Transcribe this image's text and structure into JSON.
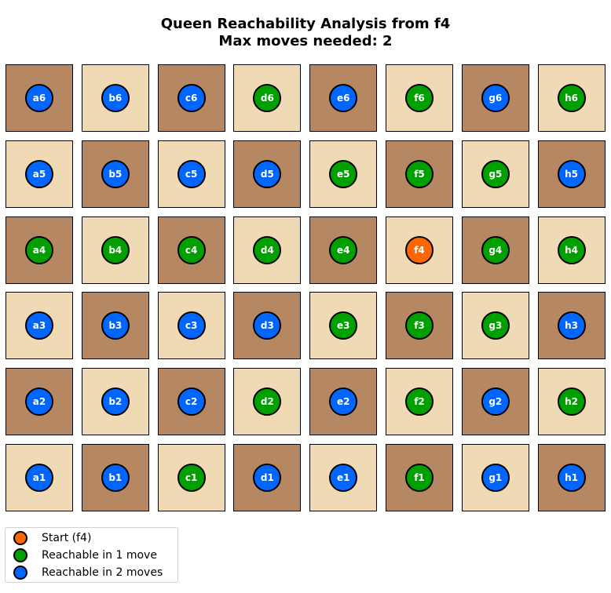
{
  "title_line1": "Queen Reachability Analysis from f4",
  "title_line2": "Max moves needed: 2",
  "colors": {
    "light_square": "#f0d9b5",
    "dark_square": "#b58863",
    "start": "#ff6600",
    "one_move": "#00a000",
    "two_moves": "#0066ff"
  },
  "files": [
    "a",
    "b",
    "c",
    "d",
    "e",
    "f",
    "g",
    "h"
  ],
  "ranks": [
    6,
    5,
    4,
    3,
    2,
    1
  ],
  "squares": [
    {
      "label": "a6",
      "moves": 2
    },
    {
      "label": "b6",
      "moves": 2
    },
    {
      "label": "c6",
      "moves": 2
    },
    {
      "label": "d6",
      "moves": 1
    },
    {
      "label": "e6",
      "moves": 2
    },
    {
      "label": "f6",
      "moves": 1
    },
    {
      "label": "g6",
      "moves": 2
    },
    {
      "label": "h6",
      "moves": 1
    },
    {
      "label": "a5",
      "moves": 2
    },
    {
      "label": "b5",
      "moves": 2
    },
    {
      "label": "c5",
      "moves": 2
    },
    {
      "label": "d5",
      "moves": 2
    },
    {
      "label": "e5",
      "moves": 1
    },
    {
      "label": "f5",
      "moves": 1
    },
    {
      "label": "g5",
      "moves": 1
    },
    {
      "label": "h5",
      "moves": 2
    },
    {
      "label": "a4",
      "moves": 1
    },
    {
      "label": "b4",
      "moves": 1
    },
    {
      "label": "c4",
      "moves": 1
    },
    {
      "label": "d4",
      "moves": 1
    },
    {
      "label": "e4",
      "moves": 1
    },
    {
      "label": "f4",
      "moves": 0
    },
    {
      "label": "g4",
      "moves": 1
    },
    {
      "label": "h4",
      "moves": 1
    },
    {
      "label": "a3",
      "moves": 2
    },
    {
      "label": "b3",
      "moves": 2
    },
    {
      "label": "c3",
      "moves": 2
    },
    {
      "label": "d3",
      "moves": 2
    },
    {
      "label": "e3",
      "moves": 1
    },
    {
      "label": "f3",
      "moves": 1
    },
    {
      "label": "g3",
      "moves": 1
    },
    {
      "label": "h3",
      "moves": 2
    },
    {
      "label": "a2",
      "moves": 2
    },
    {
      "label": "b2",
      "moves": 2
    },
    {
      "label": "c2",
      "moves": 2
    },
    {
      "label": "d2",
      "moves": 1
    },
    {
      "label": "e2",
      "moves": 2
    },
    {
      "label": "f2",
      "moves": 1
    },
    {
      "label": "g2",
      "moves": 2
    },
    {
      "label": "h2",
      "moves": 1
    },
    {
      "label": "a1",
      "moves": 2
    },
    {
      "label": "b1",
      "moves": 2
    },
    {
      "label": "c1",
      "moves": 1
    },
    {
      "label": "d1",
      "moves": 2
    },
    {
      "label": "e1",
      "moves": 2
    },
    {
      "label": "f1",
      "moves": 1
    },
    {
      "label": "g1",
      "moves": 2
    },
    {
      "label": "h1",
      "moves": 2
    }
  ],
  "legend": [
    {
      "label": "Start (f4)",
      "color": "#ff6600"
    },
    {
      "label": "Reachable in 1 move",
      "color": "#00a000"
    },
    {
      "label": "Reachable in 2 moves",
      "color": "#0066ff"
    }
  ]
}
